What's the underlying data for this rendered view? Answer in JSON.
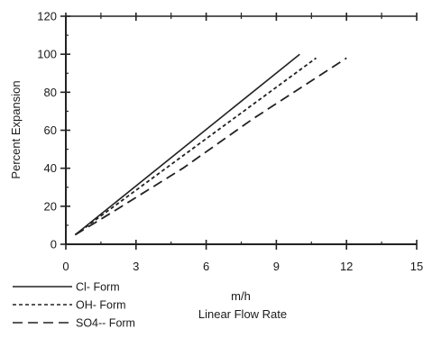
{
  "chart_data": {
    "type": "line",
    "xlabel_unit": "m/h",
    "xlabel": "Linear Flow Rate",
    "ylabel": "Percent Expansion",
    "xlim": [
      0,
      15
    ],
    "ylim": [
      0,
      120
    ],
    "xticks": [
      0,
      3,
      6,
      9,
      12,
      15
    ],
    "yticks": [
      0,
      20,
      40,
      60,
      80,
      100,
      120
    ],
    "grid": false,
    "legend_position": "bottom-left",
    "series": [
      {
        "name": "Cl- Form",
        "style": "solid",
        "x": [
          0.4,
          10
        ],
        "y": [
          5,
          100
        ]
      },
      {
        "name": "OH- Form",
        "style": "dotted",
        "x": [
          0.4,
          10.7
        ],
        "y": [
          5,
          98
        ]
      },
      {
        "name": "SO4-- Form",
        "style": "dashed",
        "x": [
          0.4,
          2,
          5,
          8,
          12
        ],
        "y": [
          5,
          17,
          40,
          66,
          98
        ]
      }
    ]
  }
}
